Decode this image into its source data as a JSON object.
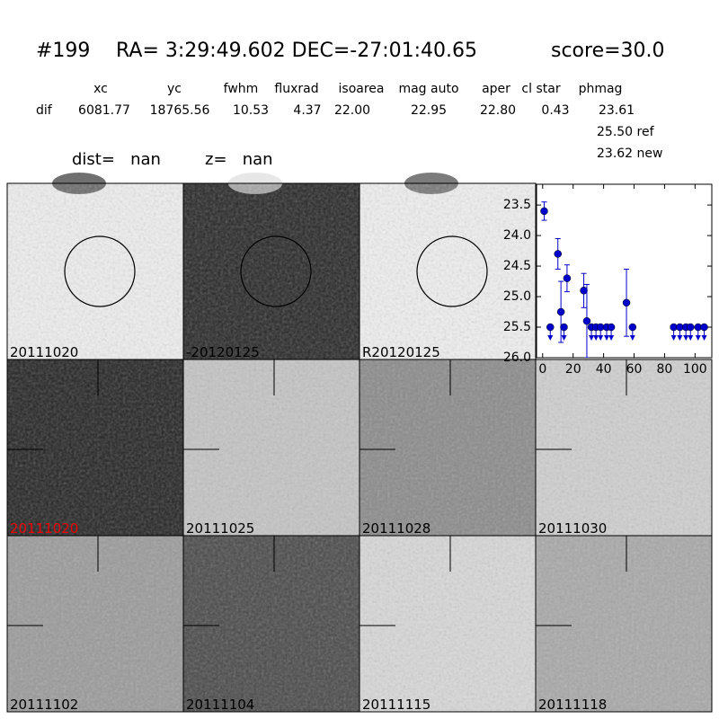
{
  "header": {
    "id": "#199",
    "coords": "RA= 3:29:49.602 DEC=-27:01:40.65",
    "score": "score=30.0"
  },
  "table": {
    "columns": [
      "xc",
      "yc",
      "fwhm",
      "fluxrad",
      "isoarea",
      "mag auto",
      "aper",
      "cl star",
      "phmag"
    ],
    "rows": [
      [
        "dif",
        "6081.77",
        "18765.56",
        "10.53",
        "4.37",
        "22.00",
        "22.95",
        "22.80",
        "0.43",
        "23.61"
      ]
    ],
    "extra": [
      "25.50 ref",
      "23.62 new"
    ]
  },
  "info": [
    "dist=   nan",
    "z=   nan"
  ],
  "panels": [
    "20111020",
    "-20120125",
    "R20120125",
    "20111020",
    "20111025",
    "20111028",
    "20111030",
    "20111102",
    "20111104",
    "20111115",
    "20111118"
  ],
  "chart_data": {
    "type": "scatter",
    "xlim": [
      -4,
      111
    ],
    "ylim": [
      26.0,
      23.16
    ],
    "xticks": [
      0,
      20,
      40,
      60,
      80,
      100
    ],
    "yticks": [
      23.5,
      {
        "value": 24,
        "label": "24.0"
      },
      24.5,
      {
        "value": 25,
        "label": "25.0"
      },
      25.5,
      {
        "value": 26,
        "label": "26.0"
      }
    ],
    "series": [
      {
        "color": "#0000cc",
        "x": [
          1,
          10,
          12,
          16,
          27,
          29,
          55
        ],
        "values": [
          23.6,
          24.3,
          25.25,
          24.7,
          24.9,
          25.4,
          25.1
        ],
        "errors": [
          0.15,
          0.25,
          0.5,
          0.22,
          0.28,
          0.6,
          0.55
        ]
      },
      {
        "color": "#0000cc",
        "marker": "upper-limit",
        "x": [
          5,
          14,
          32,
          35,
          38,
          42,
          45,
          59,
          86,
          90,
          94,
          97,
          102,
          106
        ],
        "values": [
          25.5,
          25.5,
          25.5,
          25.5,
          25.5,
          25.5,
          25.5,
          25.5,
          25.5,
          25.5,
          25.5,
          25.5,
          25.5,
          25.5
        ]
      }
    ]
  }
}
